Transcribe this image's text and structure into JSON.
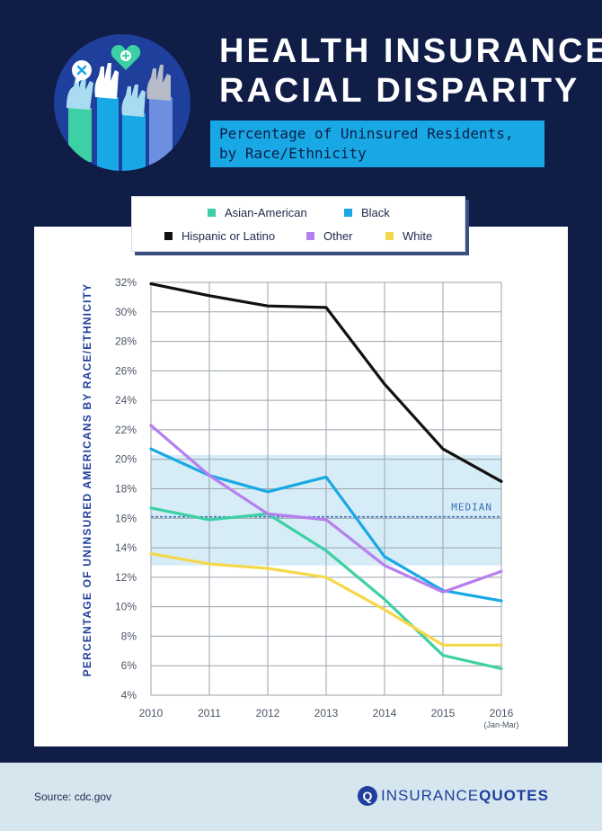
{
  "header": {
    "title_line1": "HEALTH INSURANCE",
    "title_line2": "RACIAL DISPARITY",
    "subtitle_line1": "Percentage of Uninsured Residents,",
    "subtitle_line2": "by Race/Ethnicity"
  },
  "colors": {
    "navy": "#0f1d47",
    "accent_blue": "#18a8e6",
    "median_band": "#d6ecf6",
    "median_line": "#3b6fb6"
  },
  "icons": [
    "heart-plus-icon",
    "close-bubble-icon",
    "raised-hands-icon"
  ],
  "chart_data": {
    "type": "line",
    "title": "",
    "xlabel": "",
    "ylabel": "PERCENTAGE OF UNINSURED AMERICANS BY RACE/ETHNICITY",
    "x": [
      "2010",
      "2011",
      "2012",
      "2013",
      "2014",
      "2015",
      "2016"
    ],
    "x_note": "(Jan-Mar)",
    "ylim": [
      4,
      32
    ],
    "yticks": [
      "4%",
      "6%",
      "8%",
      "10%",
      "12%",
      "14%",
      "16%",
      "18%",
      "20%",
      "22%",
      "24%",
      "26%",
      "28%",
      "30%",
      "32%"
    ],
    "grid": true,
    "legend_position": "top",
    "median": {
      "label": "MEDIAN",
      "value": 16.1,
      "band": [
        12.8,
        20.3
      ]
    },
    "series": [
      {
        "name": "Asian-American",
        "color": "#3dd0a4",
        "values": [
          16.7,
          15.9,
          16.3,
          13.8,
          10.5,
          6.7,
          5.8
        ]
      },
      {
        "name": "Black",
        "color": "#18a8e6",
        "values": [
          20.7,
          18.9,
          17.8,
          18.8,
          13.4,
          11.1,
          10.4
        ]
      },
      {
        "name": "Hispanic or Latino",
        "color": "#111111",
        "values": [
          31.9,
          31.1,
          30.4,
          30.3,
          25.1,
          20.7,
          18.5
        ]
      },
      {
        "name": "Other",
        "color": "#b57ff0",
        "values": [
          22.3,
          18.9,
          16.3,
          15.9,
          12.8,
          11.0,
          12.4
        ]
      },
      {
        "name": "White",
        "color": "#f5d84a",
        "values": [
          13.6,
          12.9,
          12.6,
          12.0,
          9.8,
          7.4,
          7.4
        ]
      }
    ]
  },
  "footer": {
    "source": "Source: cdc.gov",
    "logo_mark": "Q",
    "logo_part1": "INSURANCE",
    "logo_part2": "QUOTES"
  }
}
